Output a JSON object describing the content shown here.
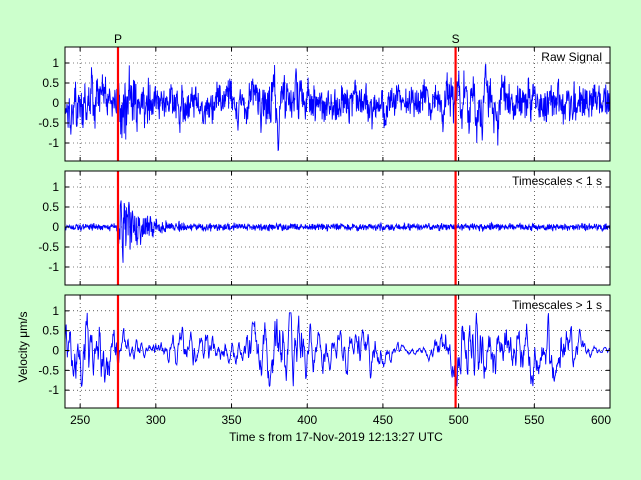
{
  "figure": {
    "background": "#ccffcc",
    "panel_background": "#ffffff",
    "trace_color": "#0000ff",
    "marker_color": "#ff0000",
    "xlabel": "Time s from 17-Nov-2019 12:13:27 UTC",
    "ylabel": "Velocity μm/s"
  },
  "chart_data": [
    {
      "type": "line",
      "title": "Raw Signal",
      "xlim": [
        240,
        600
      ],
      "ylim": [
        -1.45,
        1.4
      ],
      "yticks": [
        -1,
        -0.5,
        0,
        0.5,
        1
      ],
      "ytick_labels": [
        "-1",
        "-0.5",
        "0",
        "0.5",
        "1"
      ],
      "xticks": [
        250,
        300,
        350,
        400,
        450,
        500,
        550,
        600
      ],
      "grid": true,
      "markers": [
        {
          "label": "P",
          "x": 275
        },
        {
          "label": "S",
          "x": 498
        }
      ],
      "waveform": {
        "background_amplitude": 0.35,
        "burst": {
          "start": 275,
          "peak_amplitude": 0.95,
          "decay_seconds": 14
        },
        "long_period_amplitude": 0.3,
        "typical_range": [
          -1.35,
          1.38
        ]
      }
    },
    {
      "type": "line",
      "title": "Timescales < 1 s",
      "xlim": [
        240,
        600
      ],
      "ylim": [
        -1.45,
        1.4
      ],
      "yticks": [
        -1,
        -0.5,
        0,
        0.5,
        1
      ],
      "ytick_labels": [
        "-1",
        "-0.5",
        "0",
        "0.5",
        "1"
      ],
      "xticks": [
        250,
        300,
        350,
        400,
        450,
        500,
        550,
        600
      ],
      "grid": true,
      "markers": [
        {
          "label": "",
          "x": 275
        },
        {
          "label": "",
          "x": 498
        }
      ],
      "waveform": {
        "background_amplitude": 0.08,
        "burst": {
          "start": 275,
          "peak_amplitude": 1.0,
          "decay_seconds": 14
        },
        "long_period_amplitude": 0,
        "typical_range": [
          -1.3,
          1.35
        ]
      }
    },
    {
      "type": "line",
      "title": "Timescales > 1 s",
      "xlim": [
        240,
        600
      ],
      "ylim": [
        -1.45,
        1.4
      ],
      "yticks": [
        -1,
        -0.5,
        0,
        0.5,
        1
      ],
      "ytick_labels": [
        "-1",
        "-0.5",
        "0",
        "0.5",
        "1"
      ],
      "xticks": [
        250,
        300,
        350,
        400,
        450,
        500,
        550,
        600
      ],
      "xtick_labels": [
        "250",
        "300",
        "350",
        "400",
        "450",
        "500",
        "550",
        "600"
      ],
      "grid": true,
      "markers": [
        {
          "label": "",
          "x": 275
        },
        {
          "label": "",
          "x": 498
        }
      ],
      "waveform": {
        "background_amplitude": 0,
        "burst": {
          "start": 275,
          "peak_amplitude": 0,
          "decay_seconds": 14
        },
        "long_period_amplitude": 0.42,
        "typical_range": [
          -0.9,
          0.95
        ]
      }
    }
  ]
}
